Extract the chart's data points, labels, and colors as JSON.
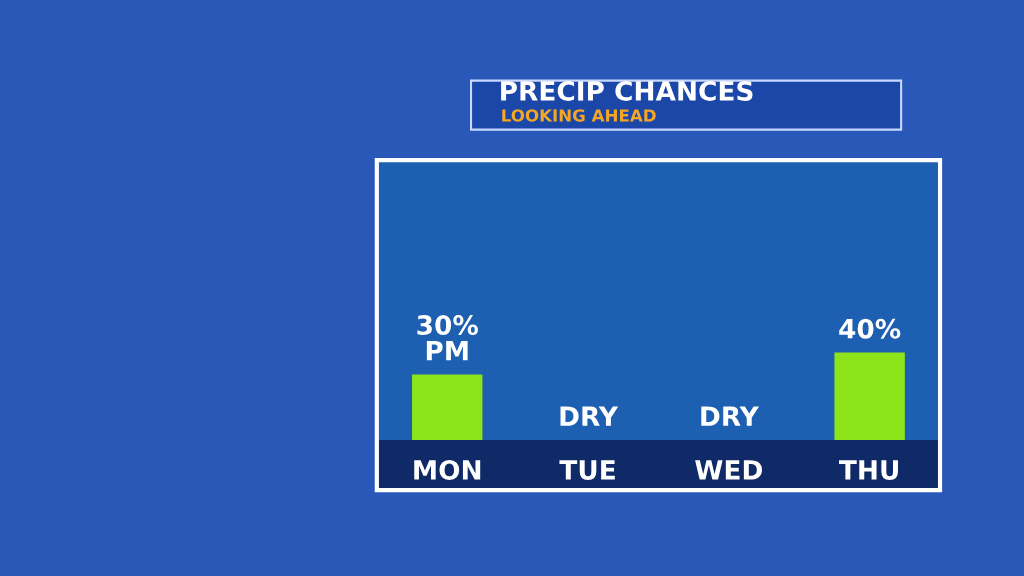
{
  "chart_data": {
    "type": "bar",
    "title": "PRECIP CHANCES",
    "subtitle": "LOOKING AHEAD",
    "categories": [
      "MON",
      "TUE",
      "WED",
      "THU"
    ],
    "values": [
      30,
      0,
      0,
      40
    ],
    "value_labels": [
      "30%\nPM",
      "DRY",
      "DRY",
      "40%"
    ],
    "color": "#8ee41a",
    "grid": false,
    "legend": false
  }
}
